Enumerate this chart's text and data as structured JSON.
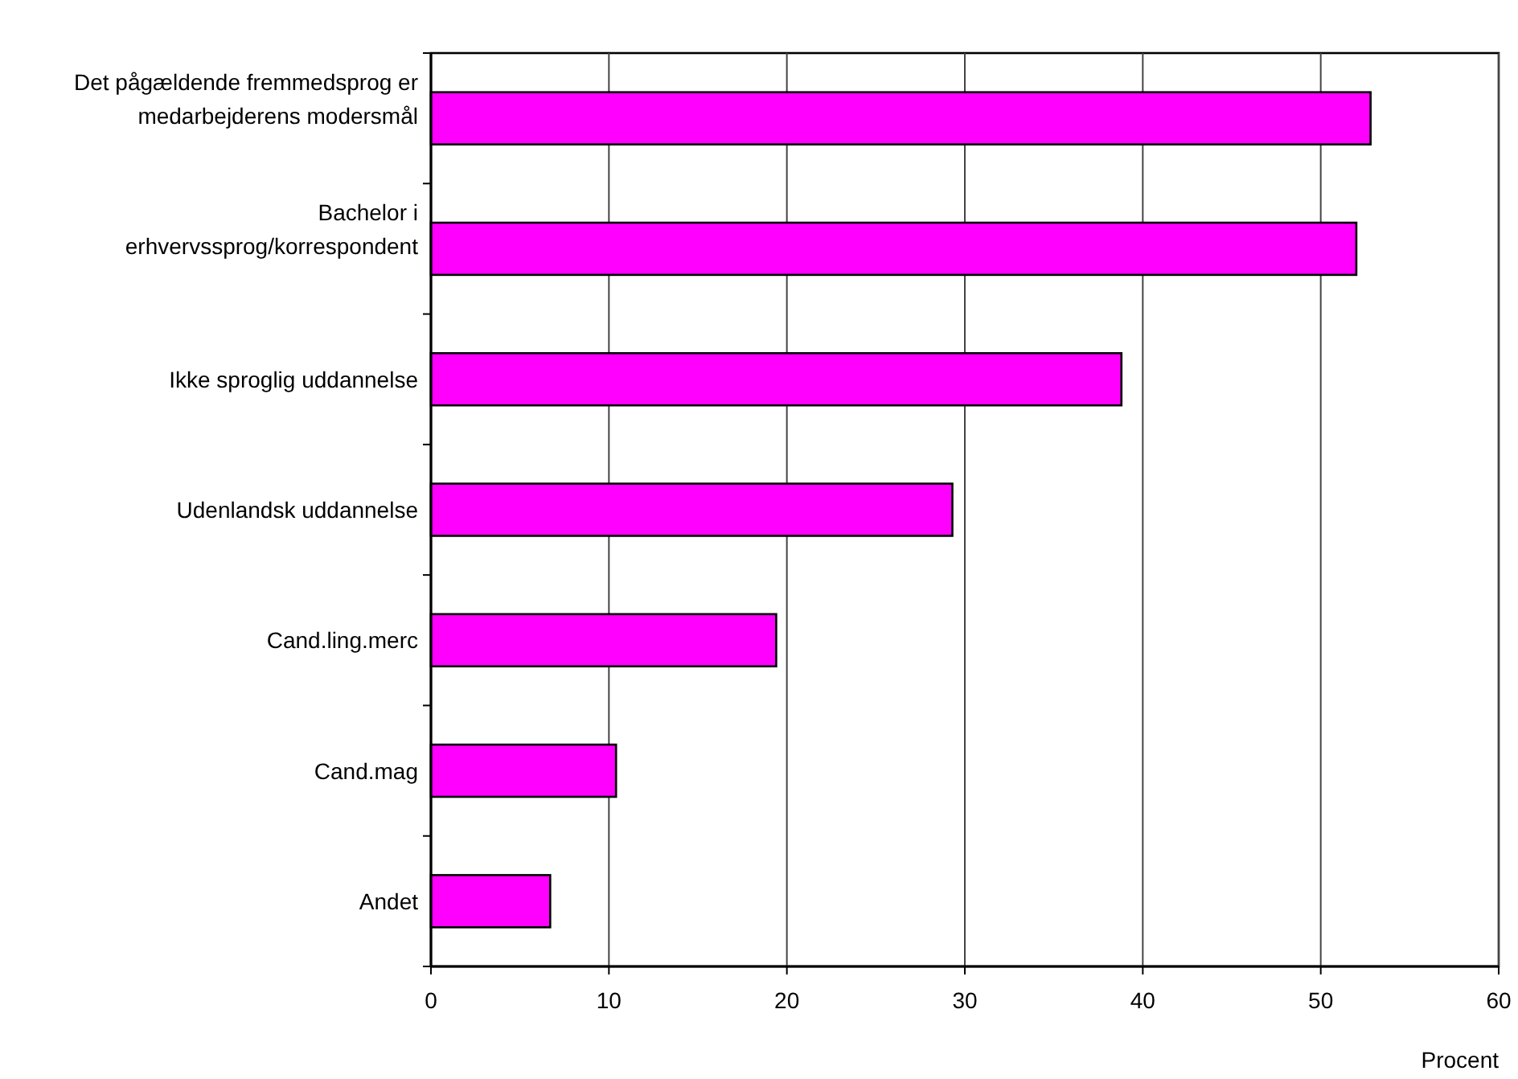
{
  "chart_data": {
    "type": "bar",
    "orientation": "horizontal",
    "xlabel": "Procent",
    "categories": [
      "Det pågældende fremmedsprog er medarbejderens modersmål",
      "Bachelor i erhvervssprog/korrespondent",
      "Ikke sproglig uddannelse",
      "Udenlandsk uddannelse",
      "Cand.ling.merc",
      "Cand.mag",
      "Andet"
    ],
    "values": [
      52.8,
      52.0,
      38.8,
      29.3,
      19.4,
      10.4,
      6.7
    ],
    "color": "#ff00ff",
    "xlim": [
      0,
      60
    ],
    "xticks": [
      0,
      10,
      20,
      30,
      40,
      50,
      60
    ],
    "grid": "x"
  }
}
